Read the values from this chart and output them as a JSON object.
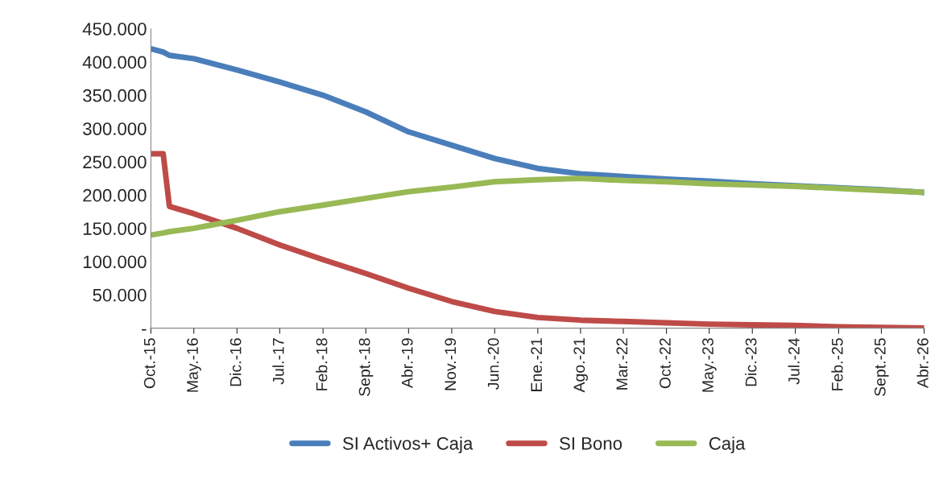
{
  "chart_data": {
    "type": "line",
    "x": [
      "2015-10",
      "2015-12",
      "2016-01",
      "2016-05",
      "2016-12",
      "2017-07",
      "2018-02",
      "2018-09",
      "2019-04",
      "2019-11",
      "2020-06",
      "2021-01",
      "2021-08",
      "2022-03",
      "2022-10",
      "2023-05",
      "2023-12",
      "2024-07",
      "2025-02",
      "2025-09",
      "2026-04"
    ],
    "series": [
      {
        "name": "SI Activos+ Caja",
        "color": "#4a7ebb",
        "values": [
          420000,
          415000,
          410000,
          405000,
          388000,
          370000,
          350000,
          325000,
          295000,
          275000,
          255000,
          240000,
          232000,
          228000,
          224000,
          221000,
          217000,
          214000,
          211000,
          208000,
          204000
        ]
      },
      {
        "name": "SI Bono",
        "color": "#be4b48",
        "values": [
          262000,
          262000,
          183000,
          172000,
          150000,
          125000,
          103000,
          82000,
          60000,
          40000,
          25000,
          16000,
          12000,
          10000,
          8000,
          6000,
          5000,
          4000,
          2000,
          1000,
          0
        ]
      },
      {
        "name": "Caja",
        "color": "#98b954",
        "values": [
          140000,
          143000,
          145000,
          150000,
          162000,
          175000,
          185000,
          195000,
          205000,
          212000,
          220000,
          223000,
          225000,
          222000,
          220000,
          217000,
          215000,
          213000,
          210000,
          207000,
          204000
        ]
      }
    ],
    "ylim": [
      0,
      450000
    ],
    "yticks": [
      {
        "value": 0,
        "label": "-"
      },
      {
        "value": 50000,
        "label": "50.000"
      },
      {
        "value": 100000,
        "label": "100.000"
      },
      {
        "value": 150000,
        "label": "150.000"
      },
      {
        "value": 200000,
        "label": "200.000"
      },
      {
        "value": 250000,
        "label": "250.000"
      },
      {
        "value": 300000,
        "label": "300.000"
      },
      {
        "value": 350000,
        "label": "350.000"
      },
      {
        "value": 400000,
        "label": "400.000"
      },
      {
        "value": 450000,
        "label": "450.000"
      }
    ],
    "xlim": [
      "2015-10",
      "2026-04"
    ],
    "xticks": [
      {
        "value": "2015-10",
        "label": "Oct.-15"
      },
      {
        "value": "2016-05",
        "label": "May.-16"
      },
      {
        "value": "2016-12",
        "label": "Dic.-16"
      },
      {
        "value": "2017-07",
        "label": "Jul.-17"
      },
      {
        "value": "2018-02",
        "label": "Feb.-18"
      },
      {
        "value": "2018-09",
        "label": "Sept.-18"
      },
      {
        "value": "2019-04",
        "label": "Abr.-19"
      },
      {
        "value": "2019-11",
        "label": "Nov.-19"
      },
      {
        "value": "2020-06",
        "label": "Jun.-20"
      },
      {
        "value": "2021-01",
        "label": "Ene.-21"
      },
      {
        "value": "2021-08",
        "label": "Ago.-21"
      },
      {
        "value": "2022-03",
        "label": "Mar.-22"
      },
      {
        "value": "2022-10",
        "label": "Oct.-22"
      },
      {
        "value": "2023-05",
        "label": "May.-23"
      },
      {
        "value": "2023-12",
        "label": "Dic.-23"
      },
      {
        "value": "2024-07",
        "label": "Jul.-24"
      },
      {
        "value": "2025-02",
        "label": "Feb.-25"
      },
      {
        "value": "2025-09",
        "label": "Sept.-25"
      },
      {
        "value": "2026-04",
        "label": "Abr.-26"
      }
    ],
    "grid": false,
    "legend": "bottom",
    "marker": "none",
    "line_style": "solid"
  }
}
